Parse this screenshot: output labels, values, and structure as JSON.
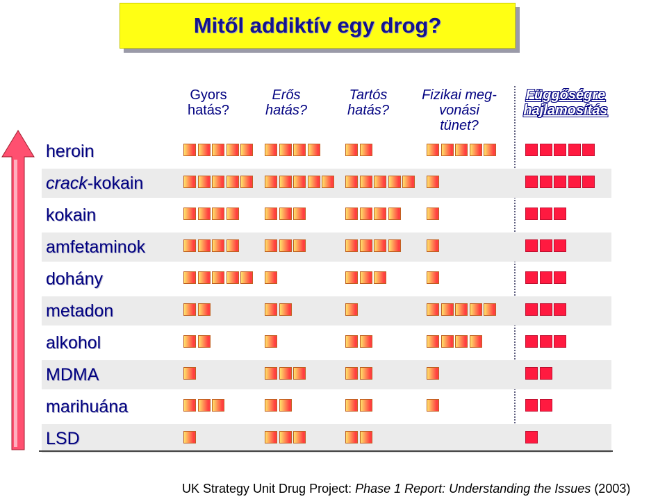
{
  "title": "Mitől addiktív egy drog?",
  "chart_data": {
    "type": "table",
    "columns": [
      {
        "line1": "Gyors",
        "line2": "hatás?",
        "line3": ""
      },
      {
        "line1": "Erős",
        "line2": "hatás?",
        "line3": ""
      },
      {
        "line1": "Tartós",
        "line2": "hatás?",
        "line3": ""
      },
      {
        "line1": "Fizikai meg-",
        "line2": "vonási",
        "line3": "tünet?"
      },
      {
        "line1": "Függőségre",
        "line2": "hajlamosítás",
        "line3": ""
      }
    ],
    "rows": [
      {
        "prefix": "heroin",
        "italic": "",
        "suffix": "",
        "values": [
          5,
          4,
          2,
          5,
          5
        ]
      },
      {
        "prefix": "",
        "italic": "crack",
        "suffix": "-kokain",
        "values": [
          5,
          5,
          5,
          1,
          5
        ]
      },
      {
        "prefix": "kokain",
        "italic": "",
        "suffix": "",
        "values": [
          4,
          3,
          4,
          1,
          3
        ]
      },
      {
        "prefix": "amfetaminok",
        "italic": "",
        "suffix": "",
        "values": [
          4,
          3,
          4,
          1,
          3
        ]
      },
      {
        "prefix": "dohány",
        "italic": "",
        "suffix": "",
        "values": [
          5,
          1,
          3,
          1,
          3
        ]
      },
      {
        "prefix": "metadon",
        "italic": "",
        "suffix": "",
        "values": [
          2,
          2,
          1,
          5,
          3
        ]
      },
      {
        "prefix": "alkohol",
        "italic": "",
        "suffix": "",
        "values": [
          2,
          1,
          2,
          4,
          3
        ]
      },
      {
        "prefix": "MDMA",
        "italic": "",
        "suffix": "",
        "values": [
          1,
          3,
          2,
          1,
          2
        ]
      },
      {
        "prefix": "marihuána",
        "italic": "",
        "suffix": "",
        "values": [
          3,
          2,
          2,
          1,
          2
        ]
      },
      {
        "prefix": "LSD",
        "italic": "",
        "suffix": "",
        "values": [
          1,
          3,
          2,
          0,
          1
        ]
      }
    ],
    "colors": {
      "scale_low": "#ffe16a",
      "scale_high": "#ff4040",
      "propensity": "#ff1a40",
      "arrow": "#ff5070",
      "title_bg": "#ffff14",
      "text": "#000080"
    }
  },
  "credit": {
    "part1": "UK Strategy Unit Drug Project: ",
    "part2": "Phase 1 Report: Understanding the Issues",
    "part3": " (2003)"
  }
}
